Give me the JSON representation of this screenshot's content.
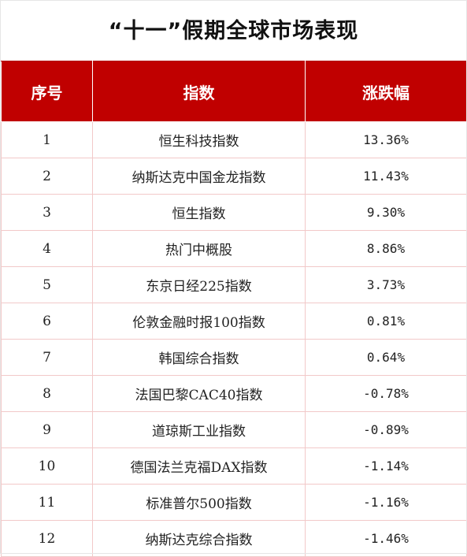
{
  "title": "“十一”假期全球市场表现",
  "headers": {
    "seq": "序号",
    "index": "指数",
    "change": "涨跌幅"
  },
  "rows": [
    {
      "seq": "1",
      "index": "恒生科技指数",
      "change": "13.36%"
    },
    {
      "seq": "2",
      "index": "纳斯达克中国金龙指数",
      "change": "11.43%"
    },
    {
      "seq": "3",
      "index": "恒生指数",
      "change": "9.30%"
    },
    {
      "seq": "4",
      "index": "热门中概股",
      "change": "8.86%"
    },
    {
      "seq": "5",
      "index": "东京日经225指数",
      "change": "3.73%"
    },
    {
      "seq": "6",
      "index": "伦敦金融时报100指数",
      "change": "0.81%"
    },
    {
      "seq": "7",
      "index": "韩国综合指数",
      "change": "0.64%"
    },
    {
      "seq": "8",
      "index": "法国巴黎CAC40指数",
      "change": "-0.78%"
    },
    {
      "seq": "9",
      "index": "道琼斯工业指数",
      "change": "-0.89%"
    },
    {
      "seq": "10",
      "index": "德国法兰克福DAX指数",
      "change": "-1.14%"
    },
    {
      "seq": "11",
      "index": "标准普尔500指数",
      "change": "-1.16%"
    },
    {
      "seq": "12",
      "index": "纳斯达克综合指数",
      "change": "-1.46%"
    }
  ],
  "colors": {
    "header_bg": "#c00000",
    "header_text": "#ffffff",
    "grid": "#f2c9c9"
  }
}
